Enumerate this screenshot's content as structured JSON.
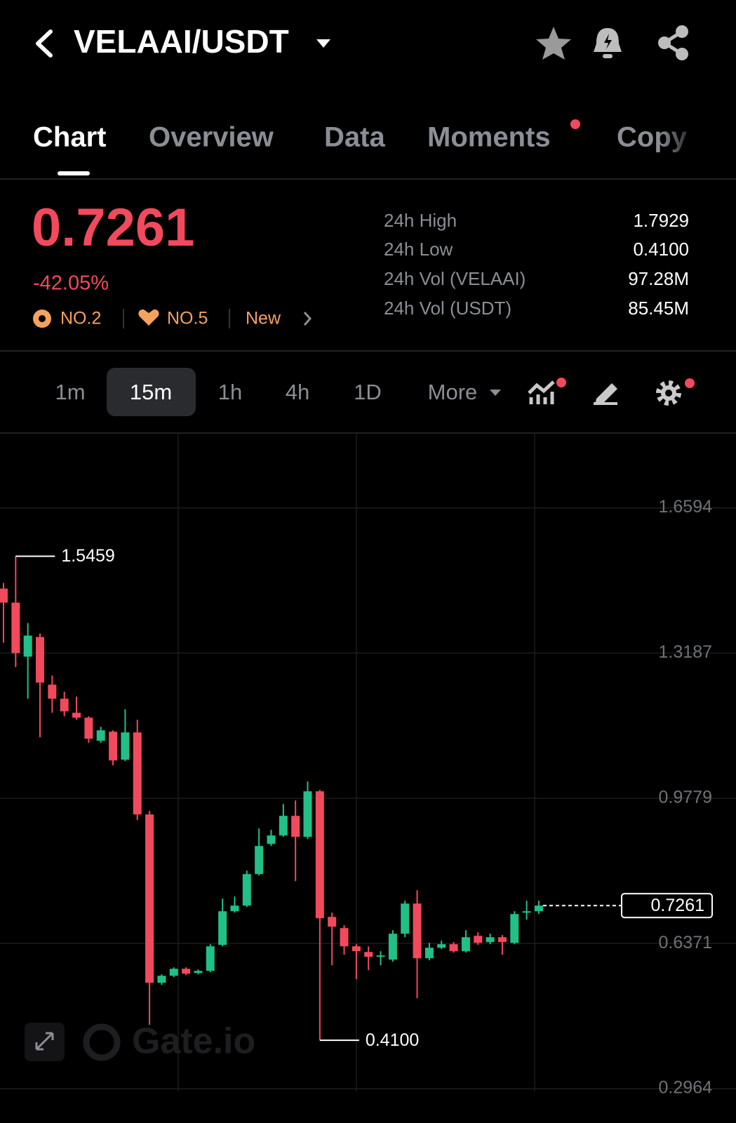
{
  "header": {
    "pair": "VELAAI/USDT"
  },
  "tabs": [
    "Chart",
    "Overview",
    "Data",
    "Moments",
    "Copy"
  ],
  "price": {
    "last": "0.7261",
    "change": "-42.05%",
    "badges": [
      "NO.2",
      "NO.5",
      "New"
    ]
  },
  "stats": [
    {
      "label": "24h High",
      "value": "1.7929"
    },
    {
      "label": "24h Low",
      "value": "0.4100"
    },
    {
      "label": "24h Vol (VELAAI)",
      "value": "97.28M"
    },
    {
      "label": "24h Vol (USDT)",
      "value": "85.45M"
    }
  ],
  "intervals": [
    "1m",
    "15m",
    "1h",
    "4h",
    "1D",
    "More"
  ],
  "chart_data": {
    "type": "candlestick",
    "open": [
      1.47,
      1.4371,
      1.3103,
      1.3564,
      1.2445,
      1.2116,
      1.1786,
      1.1671,
      1.1128,
      1.1342,
      1.0684,
      1.1325,
      0.94,
      0.5449,
      0.5614,
      0.5778,
      0.568,
      0.5729,
      0.6338,
      0.7128,
      0.726,
      0.8001,
      0.8708,
      0.8906,
      0.9367,
      0.8873,
      0.9943,
      0.6996,
      0.6733,
      0.6305,
      0.6173,
      0.6058,
      0.5992,
      0.6601,
      0.7309,
      0.6025,
      0.6272,
      0.6355,
      0.619,
      0.6552,
      0.6404,
      0.6519,
      0.6387,
      0.7095,
      0.7128
    ],
    "high": [
      1.4831,
      1.5459,
      1.3893,
      1.3646,
      1.2659,
      1.228,
      1.2165,
      1.1704,
      1.1457,
      1.1375,
      1.1869,
      1.1622,
      0.9482,
      0.5647,
      0.5811,
      0.5811,
      0.5762,
      0.6355,
      0.7424,
      0.7474,
      0.8083,
      0.907,
      0.9038,
      0.9647,
      0.9729,
      1.0173,
      0.9976,
      0.7095,
      0.6799,
      0.6355,
      0.6305,
      0.619,
      0.6684,
      0.7375,
      0.7622,
      0.6387,
      0.6437,
      0.6404,
      0.6684,
      0.6634,
      0.6601,
      0.6569,
      0.7128,
      0.7375,
      0.7375
    ],
    "low": [
      1.3432,
      1.2856,
      1.2116,
      1.121,
      1.1786,
      1.1704,
      1.1622,
      1.1079,
      1.1079,
      1.0552,
      1.0651,
      0.9268,
      0.4462,
      0.54,
      0.5581,
      0.563,
      0.5647,
      0.5696,
      0.6305,
      0.7095,
      0.7227,
      0.7968,
      0.8659,
      0.8873,
      0.7836,
      0.8824,
      0.41,
      0.5861,
      0.6108,
      0.5532,
      0.5746,
      0.5861,
      0.5943,
      0.6519,
      0.5087,
      0.5976,
      0.6239,
      0.6157,
      0.6157,
      0.6338,
      0.6355,
      0.6108,
      0.6355,
      0.6931,
      0.7062
    ],
    "close": [
      1.4371,
      1.3185,
      1.3597,
      1.2494,
      1.2116,
      1.1819,
      1.1671,
      1.1177,
      1.1375,
      1.0667,
      1.1325,
      0.94,
      0.5449,
      0.5614,
      0.5778,
      0.5663,
      0.5729,
      0.6305,
      0.7128,
      0.726,
      0.8001,
      0.8659,
      0.8906,
      0.9367,
      0.8873,
      0.9943,
      0.6964,
      0.6766,
      0.6305,
      0.619,
      0.6058,
      0.6091,
      0.6601,
      0.7309,
      0.6025,
      0.6272,
      0.6355,
      0.619,
      0.6519,
      0.6387,
      0.6519,
      0.6404,
      0.7062,
      0.7128,
      0.7261
    ],
    "colors": {
      "up": "#21c087",
      "down": "#f2495c"
    },
    "ylim": [
      0.29,
      1.83
    ],
    "yticks": [
      0.2964,
      0.6371,
      0.9779,
      1.3187,
      1.6594
    ],
    "grid": true,
    "annotations": [
      1.5459,
      {
        "value": 0.41,
        "label": "0.4100"
      },
      {
        "value": 0.7261,
        "label": "0.7261"
      }
    ]
  },
  "watermark": "Gate.io"
}
